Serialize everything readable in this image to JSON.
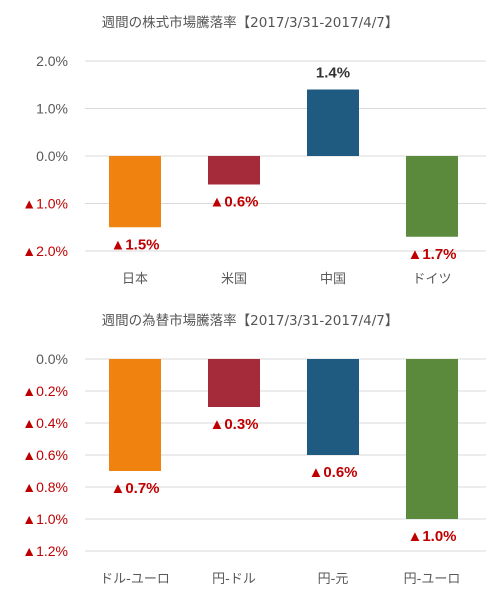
{
  "chart_data": [
    {
      "type": "bar",
      "title": "週間の株式市場騰落率【2017/3/31-2017/4/7】",
      "categories": [
        "日本",
        "米国",
        "中国",
        "ドイツ"
      ],
      "values": [
        -1.5,
        -0.6,
        1.4,
        -1.7
      ],
      "data_labels": [
        "▲1.5%",
        "▲0.6%",
        "1.4%",
        "▲1.7%"
      ],
      "colors": [
        "#f0820f",
        "#a52a3a",
        "#1f5a80",
        "#5b8a3c"
      ],
      "ylim": [
        -2.0,
        2.0
      ],
      "yticks": [
        2.0,
        1.0,
        0.0,
        -1.0,
        -2.0
      ],
      "ytick_labels": [
        "2.0%",
        "1.0%",
        "0.0%",
        "▲1.0%",
        "▲2.0%"
      ],
      "grid": true,
      "xlabel": "",
      "ylabel": ""
    },
    {
      "type": "bar",
      "title": "週間の為替市場騰落率【2017/3/31-2017/4/7】",
      "categories": [
        "ドル-ユーロ",
        "円-ドル",
        "円-元",
        "円-ユーロ"
      ],
      "values": [
        -0.7,
        -0.3,
        -0.6,
        -1.0
      ],
      "data_labels": [
        "▲0.7%",
        "▲0.3%",
        "▲0.6%",
        "▲1.0%"
      ],
      "colors": [
        "#f0820f",
        "#a52a3a",
        "#1f5a80",
        "#5b8a3c"
      ],
      "ylim": [
        -1.2,
        0.0
      ],
      "yticks": [
        0.0,
        -0.2,
        -0.4,
        -0.6,
        -0.8,
        -1.0,
        -1.2
      ],
      "ytick_labels": [
        "0.0%",
        "▲0.2%",
        "▲0.4%",
        "▲0.6%",
        "▲0.8%",
        "▲1.0%",
        "▲1.2%"
      ],
      "grid": true,
      "xlabel": "",
      "ylabel": ""
    }
  ],
  "colors": {
    "positive_label": "#333333",
    "negative_label": "#c00000"
  }
}
